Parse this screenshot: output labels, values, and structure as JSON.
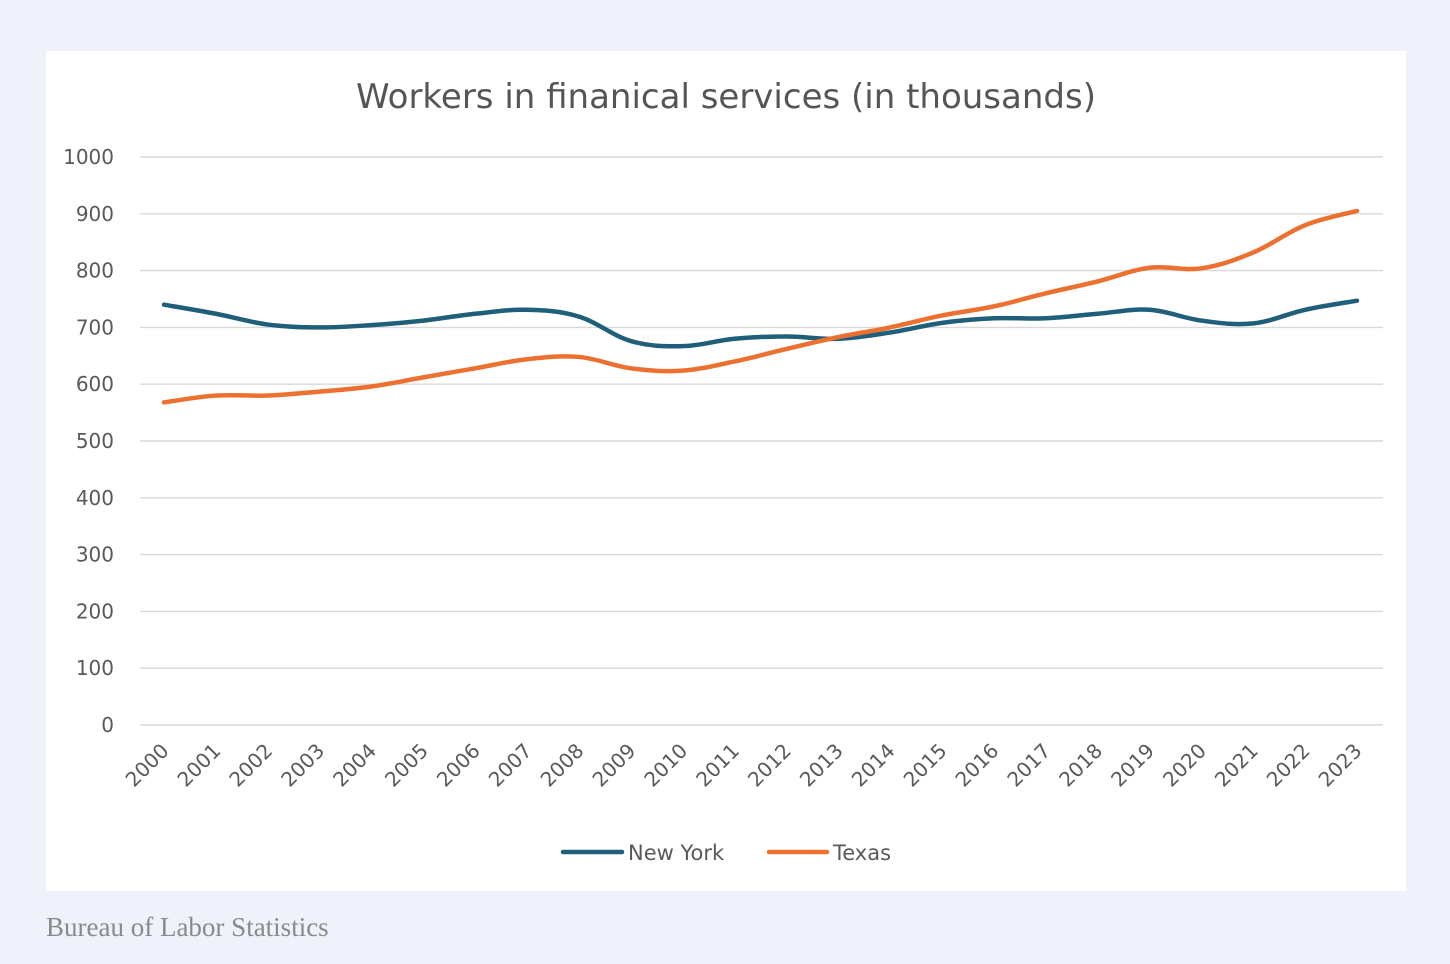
{
  "source": "Bureau of Labor Statistics",
  "chart_data": {
    "type": "line",
    "title": "Workers in finanical services (in thousands)",
    "xlabel": "",
    "ylabel": "",
    "ylim": [
      0,
      1000
    ],
    "yticks": [
      0,
      100,
      200,
      300,
      400,
      500,
      600,
      700,
      800,
      900,
      1000
    ],
    "grid": true,
    "legend_position": "bottom",
    "categories": [
      "2000",
      "2001",
      "2002",
      "2003",
      "2004",
      "2005",
      "2006",
      "2007",
      "2008",
      "2009",
      "2010",
      "2011",
      "2012",
      "2013",
      "2014",
      "2015",
      "2016",
      "2017",
      "2018",
      "2019",
      "2020",
      "2021",
      "2022",
      "2023"
    ],
    "series": [
      {
        "name": "New York",
        "color": "#1f5f7a",
        "values": [
          740,
          724,
          705,
          700,
          704,
          712,
          724,
          731,
          719,
          676,
          667,
          680,
          684,
          680,
          691,
          708,
          716,
          716,
          724,
          731,
          712,
          707,
          731,
          747
        ]
      },
      {
        "name": "Texas",
        "color": "#ec7130",
        "values": [
          568,
          580,
          580,
          587,
          596,
          612,
          628,
          644,
          648,
          628,
          624,
          640,
          662,
          683,
          700,
          721,
          737,
          760,
          781,
          805,
          804,
          832,
          880,
          905
        ]
      }
    ]
  }
}
